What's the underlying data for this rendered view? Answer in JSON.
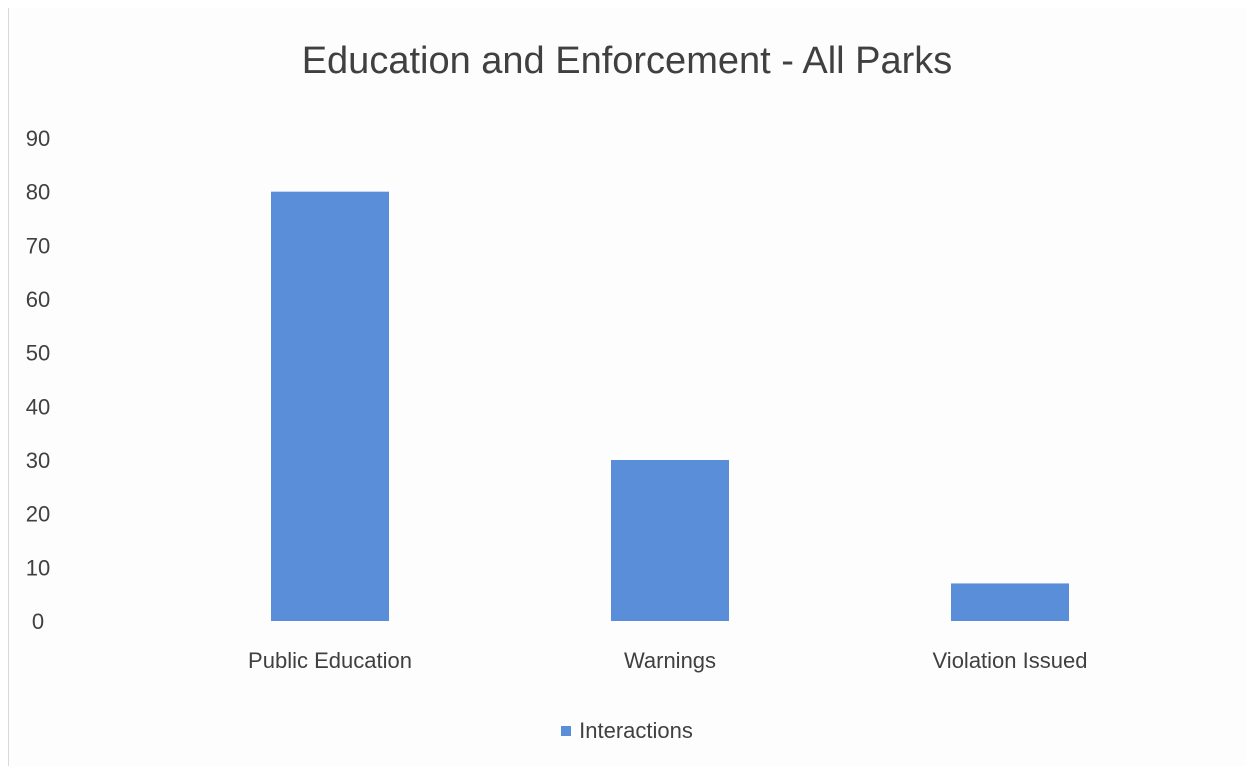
{
  "chart_data": {
    "type": "bar",
    "title": "Education and Enforcement - All Parks",
    "xlabel": "",
    "ylabel": "",
    "categories": [
      "Public Education",
      "Warnings",
      "Violation Issued"
    ],
    "series": [
      {
        "name": "Interactions",
        "values": [
          80,
          30,
          7
        ],
        "color": "#5b8ed8"
      }
    ],
    "ylim": [
      0,
      90
    ],
    "yticks": [
      0,
      10,
      20,
      30,
      40,
      50,
      60,
      70,
      80,
      90
    ],
    "grid": false,
    "legend_position": "bottom"
  }
}
